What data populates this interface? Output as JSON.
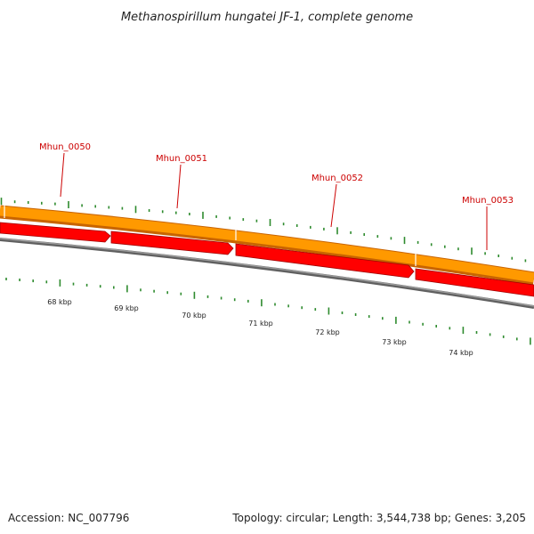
{
  "title": "Methanospirillum hungatei JF-1, complete genome",
  "footer": {
    "accession": "Accession: NC_007796",
    "summary": "Topology: circular; Length: 3,544,738 bp; Genes: 3,205"
  },
  "colors": {
    "cds_track": "#ff9900",
    "cds_track_edge": "#c86400",
    "gene_arrow": "#ff0000",
    "gene_arrow_edge": "#a00000",
    "backbone": "#808080",
    "tick": "#2e8b2e",
    "label_line": "#cc0000"
  },
  "genes": [
    {
      "label": "Mhun_0050"
    },
    {
      "label": "Mhun_0051"
    },
    {
      "label": "Mhun_0052"
    },
    {
      "label": "Mhun_0053"
    }
  ],
  "scale_labels": [
    "68 kbp",
    "69 kbp",
    "70 kbp",
    "71 kbp",
    "72 kbp",
    "73 kbp",
    "74 kbp"
  ]
}
